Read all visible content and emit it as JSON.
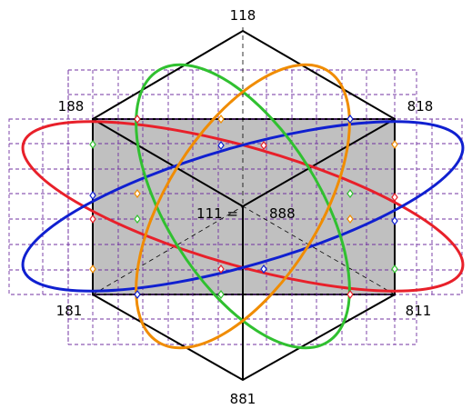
{
  "labels": {
    "top": "118",
    "upper_left": "188",
    "upper_right": "818",
    "center_left": "111 =",
    "center_right": "888",
    "lower_left": "181",
    "lower_right": "811",
    "bottom": "881"
  },
  "colors": {
    "background": "#ffffff",
    "square_fill": "#c0c0c0",
    "grid": "#7030a0",
    "edges": "#000000",
    "ellipse_red": "#e8202a",
    "ellipse_blue": "#1020d0",
    "ellipse_green": "#30c030",
    "ellipse_orange": "#f08c00"
  }
}
